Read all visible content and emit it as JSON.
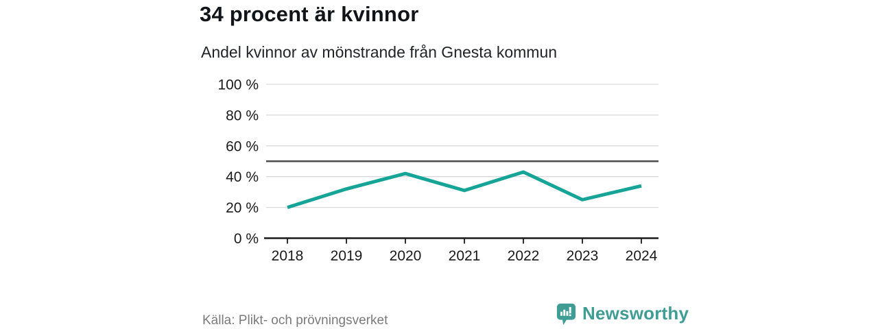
{
  "header": {
    "title": "34 procent är kvinnor",
    "subtitle": "Andel kvinnor av mönstrande från Gnesta kommun"
  },
  "footer": {
    "source": "Källa: Plikt- och prövningsverket",
    "brand": "Newsworthy"
  },
  "colors": {
    "line": "#16a496",
    "grid": "#d9d9d9",
    "reference_line": "#4d4d4d",
    "axis": "#1a1a1a",
    "text": "#1a1a1a",
    "muted_text": "#7a7a7a",
    "brand": "#3f9d94",
    "background": "#ffffff"
  },
  "chart_data": {
    "type": "line",
    "title": "34 procent är kvinnor",
    "subtitle": "Andel kvinnor av mönstrande från Gnesta kommun",
    "source": "Källa: Plikt- och prövningsverket",
    "categories": [
      "2018",
      "2019",
      "2020",
      "2021",
      "2022",
      "2023",
      "2024"
    ],
    "values": [
      20,
      32,
      42,
      31,
      43,
      25,
      34
    ],
    "unit": "%",
    "xlabel": "",
    "ylabel": "",
    "ylim": [
      0,
      100
    ],
    "yticks": [
      0,
      20,
      40,
      60,
      80,
      100
    ],
    "ytick_suffix": " %",
    "reference_line": 50,
    "grid": "horizontal",
    "legend": "none"
  }
}
